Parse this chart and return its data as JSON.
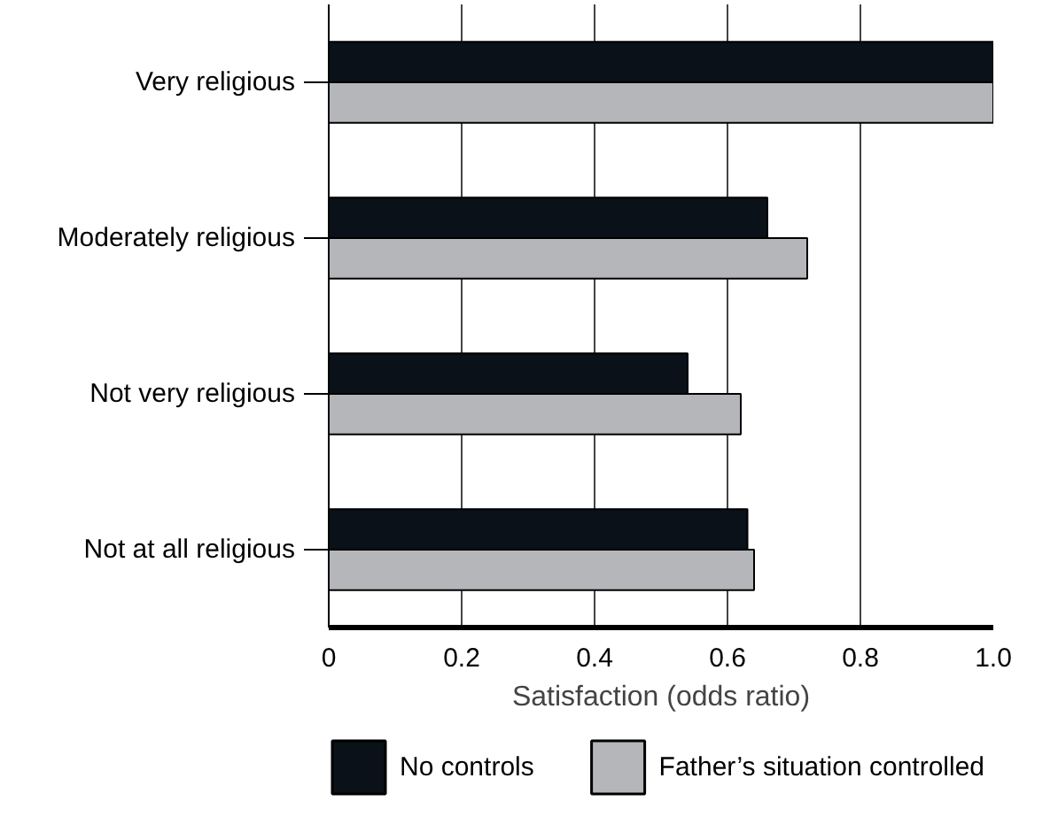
{
  "chart_data": {
    "type": "bar",
    "orientation": "horizontal",
    "xlabel": "Satisfaction (odds ratio)",
    "categories": [
      "Very religious",
      "Moderately religious",
      "Not very religious",
      "Not at all religious"
    ],
    "series": [
      {
        "name": "No controls",
        "color": "#0a1118",
        "values": [
          1.0,
          0.66,
          0.54,
          0.63
        ]
      },
      {
        "name": "Father’s situation controlled",
        "color": "#b5b6ba",
        "values": [
          1.0,
          0.72,
          0.62,
          0.64
        ]
      }
    ],
    "xlim": [
      0,
      1.0
    ],
    "xticks": [
      0,
      0.2,
      0.4,
      0.6,
      0.8,
      {
        "value": 1.0,
        "label": "1.0"
      }
    ],
    "grid": "x",
    "legend": "bottom"
  }
}
